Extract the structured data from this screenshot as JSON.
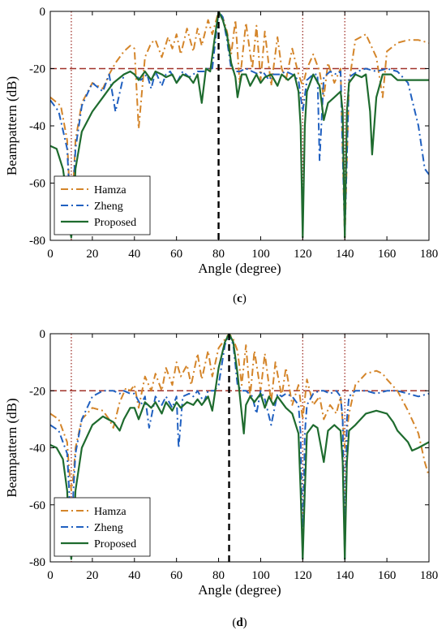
{
  "chart_data": [
    {
      "type": "line",
      "panel_label": "(c)",
      "xlabel": "Angle (degree)",
      "ylabel": "Beampattern (dB)",
      "xlim": [
        0,
        180
      ],
      "ylim": [
        -80,
        0
      ],
      "xticks": [
        "0",
        "20",
        "40",
        "60",
        "80",
        "100",
        "120",
        "140",
        "160",
        "180"
      ],
      "yticks": [
        "0",
        "-20",
        "-40",
        "-60",
        "-80"
      ],
      "grid": false,
      "legend_position": "lower-left",
      "target_angle": 80,
      "null_angles": [
        10,
        120,
        140
      ],
      "threshold_db": -20,
      "series": [
        {
          "name": "Hamza",
          "color": "#D4852A",
          "dash": "dashdot",
          "x": [
            0,
            5,
            8,
            9,
            10,
            11,
            12,
            15,
            20,
            25,
            28,
            31,
            35,
            38,
            40,
            42,
            45,
            48,
            50,
            53,
            56,
            58,
            60,
            62,
            65,
            68,
            70,
            72,
            75,
            77,
            80,
            82,
            84,
            86,
            88,
            90,
            93,
            96,
            98,
            100,
            102,
            105,
            108,
            110,
            112,
            115,
            118,
            120,
            122,
            125,
            128,
            130,
            132,
            135,
            138,
            140,
            142,
            145,
            150,
            155,
            158,
            160,
            165,
            170,
            175,
            180
          ],
          "y": [
            -30,
            -33,
            -45,
            -60,
            -78,
            -60,
            -45,
            -32,
            -25,
            -27,
            -22,
            -18,
            -14,
            -12,
            -13,
            -41,
            -16,
            -11,
            -10,
            -16,
            -9,
            -13,
            -8,
            -15,
            -6,
            -14,
            -6,
            -12,
            -3,
            -8,
            0,
            -2,
            -7,
            -15,
            -3,
            -25,
            -4,
            -20,
            -5,
            -24,
            -7,
            -26,
            -9,
            -20,
            -24,
            -13,
            -22,
            -26,
            -20,
            -15,
            -21,
            -30,
            -18,
            -25,
            -20,
            -79,
            -25,
            -10,
            -8,
            -16,
            -30,
            -14,
            -11,
            -10,
            -10,
            -11
          ]
        },
        {
          "name": "Zheng",
          "color": "#2060C0",
          "dash": "dashdot",
          "x": [
            0,
            4,
            8,
            9,
            10,
            11,
            12,
            15,
            20,
            25,
            28,
            31,
            35,
            38,
            40,
            43,
            46,
            48,
            50,
            53,
            55,
            57,
            60,
            63,
            66,
            70,
            73,
            75,
            77,
            80,
            82,
            84,
            86,
            88,
            90,
            93,
            96,
            99,
            101,
            104,
            106,
            109,
            112,
            115,
            118,
            120,
            122,
            125,
            127,
            128,
            130,
            133,
            136,
            138,
            140,
            142,
            146,
            150,
            155,
            160,
            165,
            170,
            175,
            178,
            180
          ],
          "y": [
            -31,
            -35,
            -48,
            -62,
            -78,
            -62,
            -48,
            -33,
            -25,
            -28,
            -22,
            -35,
            -22,
            -21,
            -22,
            -24,
            -22,
            -27,
            -21,
            -26,
            -22,
            -21,
            -25,
            -21,
            -23,
            -21,
            -21,
            -20,
            -20,
            0,
            -2,
            -10,
            -20,
            -21,
            -21,
            -20,
            -21,
            -22,
            -21,
            -24,
            -22,
            -22,
            -21,
            -22,
            -24,
            -35,
            -24,
            -22,
            -22,
            -52,
            -23,
            -21,
            -22,
            -21,
            -78,
            -23,
            -21,
            -20,
            -21,
            -20,
            -21,
            -25,
            -40,
            -55,
            -57
          ]
        },
        {
          "name": "Proposed",
          "color": "#1E6B2E",
          "dash": "solid",
          "x": [
            0,
            3,
            6,
            8,
            9,
            10,
            11,
            12,
            15,
            20,
            25,
            30,
            35,
            38,
            40,
            42,
            45,
            48,
            50,
            53,
            55,
            58,
            60,
            63,
            66,
            68,
            70,
            72,
            74,
            76,
            78,
            80,
            82,
            84,
            86,
            88,
            89,
            90,
            91,
            93,
            95,
            98,
            100,
            102,
            105,
            108,
            110,
            113,
            116,
            118,
            119,
            120,
            121,
            122,
            125,
            128,
            130,
            132,
            135,
            138,
            139,
            140,
            141,
            142,
            145,
            148,
            150,
            152,
            153,
            155,
            158,
            162,
            165,
            170,
            175,
            180
          ],
          "y": [
            -47,
            -48,
            -55,
            -65,
            -75,
            -79,
            -70,
            -55,
            -42,
            -35,
            -30,
            -25,
            -22,
            -21,
            -22,
            -24,
            -21,
            -24,
            -21,
            -22,
            -23,
            -22,
            -25,
            -22,
            -23,
            -25,
            -22,
            -32,
            -20,
            -21,
            -10,
            0,
            -3,
            -8,
            -18,
            -23,
            -30,
            -26,
            -22,
            -22,
            -26,
            -22,
            -25,
            -23,
            -22,
            -26,
            -22,
            -24,
            -22,
            -28,
            -40,
            -79,
            -40,
            -28,
            -22,
            -26,
            -38,
            -32,
            -30,
            -28,
            -35,
            -79,
            -35,
            -25,
            -22,
            -23,
            -22,
            -35,
            -50,
            -30,
            -22,
            -22,
            -24,
            -24,
            -24,
            -24
          ]
        }
      ]
    },
    {
      "type": "line",
      "panel_label": "(d)",
      "xlabel": "Angle (degree)",
      "ylabel": "Beampattern (dB)",
      "xlim": [
        0,
        180
      ],
      "ylim": [
        -80,
        0
      ],
      "xticks": [
        "0",
        "20",
        "40",
        "60",
        "80",
        "100",
        "120",
        "140",
        "160",
        "180"
      ],
      "yticks": [
        "0",
        "-20",
        "-40",
        "-60",
        "-80"
      ],
      "grid": false,
      "legend_position": "lower-left",
      "target_angle": 85,
      "null_angles": [
        10,
        120,
        140
      ],
      "threshold_db": -20,
      "series": [
        {
          "name": "Hamza",
          "color": "#D4852A",
          "dash": "dashdot",
          "x": [
            0,
            4,
            8,
            9,
            10,
            11,
            12,
            15,
            20,
            25,
            28,
            30,
            33,
            36,
            38,
            40,
            42,
            45,
            48,
            50,
            53,
            55,
            58,
            60,
            62,
            65,
            67,
            70,
            72,
            75,
            77,
            80,
            83,
            85,
            87,
            89,
            91,
            93,
            95,
            97,
            100,
            102,
            105,
            107,
            110,
            112,
            115,
            118,
            120,
            122,
            125,
            128,
            130,
            133,
            136,
            138,
            140,
            142,
            145,
            150,
            155,
            158,
            160,
            165,
            170,
            175,
            178,
            180
          ],
          "y": [
            -28,
            -30,
            -38,
            -48,
            -55,
            -50,
            -40,
            -30,
            -26,
            -27,
            -30,
            -33,
            -24,
            -19,
            -20,
            -18,
            -26,
            -15,
            -20,
            -14,
            -20,
            -12,
            -18,
            -10,
            -15,
            -11,
            -18,
            -7,
            -16,
            -6,
            -15,
            -5,
            -2,
            0,
            -2,
            -6,
            -18,
            -4,
            -22,
            -6,
            -20,
            -7,
            -24,
            -10,
            -22,
            -12,
            -25,
            -18,
            -30,
            -16,
            -25,
            -22,
            -30,
            -25,
            -28,
            -22,
            -40,
            -28,
            -18,
            -14,
            -13,
            -14,
            -16,
            -20,
            -27,
            -35,
            -45,
            -50
          ]
        },
        {
          "name": "Zheng",
          "color": "#2060C0",
          "dash": "dashdot",
          "x": [
            0,
            4,
            8,
            9,
            10,
            11,
            12,
            15,
            20,
            25,
            30,
            33,
            35,
            38,
            40,
            43,
            45,
            47,
            50,
            53,
            55,
            58,
            60,
            61,
            63,
            66,
            68,
            70,
            73,
            75,
            78,
            80,
            83,
            85,
            87,
            89,
            91,
            93,
            96,
            98,
            100,
            102,
            105,
            108,
            110,
            112,
            115,
            118,
            119,
            120,
            121,
            122,
            125,
            128,
            130,
            133,
            136,
            138,
            139,
            140,
            141,
            142,
            145,
            150,
            155,
            160,
            165,
            170,
            175,
            180
          ],
          "y": [
            -32,
            -34,
            -42,
            -55,
            -79,
            -55,
            -42,
            -30,
            -22,
            -20,
            -20,
            -21,
            -20,
            -21,
            -21,
            -25,
            -22,
            -33,
            -22,
            -25,
            -22,
            -26,
            -22,
            -40,
            -22,
            -21,
            -22,
            -20,
            -24,
            -20,
            -20,
            -18,
            -4,
            0,
            -4,
            -18,
            -20,
            -20,
            -22,
            -28,
            -20,
            -23,
            -32,
            -21,
            -22,
            -21,
            -22,
            -25,
            -35,
            -79,
            -35,
            -25,
            -21,
            -20,
            -20,
            -21,
            -20,
            -22,
            -30,
            -79,
            -30,
            -22,
            -20,
            -20,
            -21,
            -20,
            -20,
            -21,
            -22,
            -21
          ]
        },
        {
          "name": "Proposed",
          "color": "#1E6B2E",
          "dash": "solid",
          "x": [
            0,
            3,
            6,
            8,
            9,
            10,
            11,
            12,
            15,
            20,
            25,
            30,
            33,
            35,
            38,
            40,
            42,
            45,
            48,
            50,
            53,
            55,
            58,
            60,
            62,
            65,
            68,
            70,
            72,
            75,
            77,
            80,
            83,
            85,
            87,
            89,
            91,
            92,
            93,
            95,
            97,
            100,
            102,
            104,
            106,
            108,
            110,
            112,
            115,
            118,
            119,
            120,
            121,
            122,
            125,
            127,
            130,
            132,
            135,
            138,
            139,
            140,
            141,
            142,
            145,
            150,
            155,
            160,
            163,
            165,
            170,
            172,
            175,
            180
          ],
          "y": [
            -39,
            -40,
            -44,
            -55,
            -70,
            -79,
            -70,
            -55,
            -40,
            -32,
            -29,
            -31,
            -34,
            -30,
            -26,
            -26,
            -30,
            -24,
            -26,
            -24,
            -28,
            -24,
            -27,
            -24,
            -26,
            -24,
            -25,
            -23,
            -25,
            -22,
            -27,
            -12,
            -3,
            0,
            -3,
            -14,
            -28,
            -35,
            -25,
            -22,
            -24,
            -21,
            -26,
            -22,
            -25,
            -22,
            -24,
            -26,
            -28,
            -35,
            -55,
            -79,
            -55,
            -35,
            -32,
            -33,
            -45,
            -34,
            -32,
            -34,
            -45,
            -79,
            -45,
            -34,
            -32,
            -28,
            -27,
            -28,
            -31,
            -34,
            -38,
            -41,
            -40,
            -38
          ]
        }
      ]
    }
  ]
}
